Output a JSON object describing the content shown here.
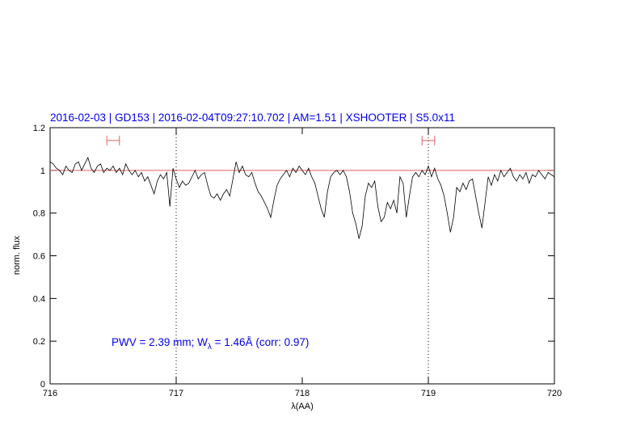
{
  "chart_data": {
    "type": "line",
    "title": "2016-02-03 | GD153 | 2016-02-04T09:27:10.702 | AM=1.51 | XSHOOTER | S5.0x11",
    "x_label": "λ(AA)",
    "y_label": "norm. flux",
    "annotation": [
      "PWV = 2.39 mm; W",
      "λ",
      " = 1.46Å (corr: 0.97)"
    ],
    "xlim": [
      716,
      720
    ],
    "xticks": [
      716,
      717,
      718,
      719,
      720
    ],
    "ylim": [
      0,
      1.2
    ],
    "yticks": [
      0,
      0.2,
      0.4,
      0.6,
      0.8,
      1,
      1.2
    ],
    "reference_line": {
      "y": 1,
      "color": "#e06060"
    },
    "dotted_lines": [
      717,
      719
    ],
    "range_markers": {
      "color": "#e06060",
      "y": 1.14,
      "ranges": [
        [
          716.45,
          716.55
        ],
        [
          718.95,
          719.05
        ]
      ]
    },
    "x": [
      716.0,
      716.025,
      716.05,
      716.075,
      716.1,
      716.125,
      716.15,
      716.175,
      716.2,
      716.225,
      716.25,
      716.275,
      716.3,
      716.325,
      716.35,
      716.375,
      716.4,
      716.425,
      716.45,
      716.475,
      716.5,
      716.525,
      716.55,
      716.575,
      716.6,
      716.625,
      716.65,
      716.675,
      716.7,
      716.725,
      716.75,
      716.775,
      716.8,
      716.825,
      716.85,
      716.875,
      716.9,
      716.925,
      716.95,
      716.975,
      717.0,
      717.025,
      717.05,
      717.075,
      717.1,
      717.125,
      717.15,
      717.175,
      717.2,
      717.225,
      717.25,
      717.275,
      717.3,
      717.325,
      717.35,
      717.375,
      717.4,
      717.425,
      717.45,
      717.475,
      717.5,
      717.525,
      717.55,
      717.575,
      717.6,
      717.625,
      717.65,
      717.675,
      717.7,
      717.725,
      717.75,
      717.775,
      717.8,
      717.825,
      717.85,
      717.875,
      717.9,
      717.925,
      717.95,
      717.975,
      718.0,
      718.025,
      718.05,
      718.075,
      718.1,
      718.125,
      718.15,
      718.175,
      718.2,
      718.225,
      718.25,
      718.275,
      718.3,
      718.325,
      718.35,
      718.375,
      718.4,
      718.425,
      718.45,
      718.475,
      718.5,
      718.525,
      718.55,
      718.575,
      718.6,
      718.625,
      718.65,
      718.675,
      718.7,
      718.725,
      718.75,
      718.775,
      718.8,
      718.825,
      718.85,
      718.875,
      718.9,
      718.925,
      718.95,
      718.975,
      719.0,
      719.025,
      719.05,
      719.075,
      719.1,
      719.125,
      719.15,
      719.175,
      719.2,
      719.225,
      719.25,
      719.275,
      719.3,
      719.325,
      719.35,
      719.375,
      719.4,
      719.425,
      719.45,
      719.475,
      719.5,
      719.525,
      719.55,
      719.575,
      719.6,
      719.625,
      719.65,
      719.675,
      719.7,
      719.725,
      719.75,
      719.775,
      719.8,
      719.825,
      719.85,
      719.875,
      719.9,
      719.925,
      719.95,
      719.975,
      720.0
    ],
    "series": [
      {
        "color": "#000000",
        "values": [
          1.04,
          1.03,
          1.01,
          1.0,
          0.98,
          1.02,
          1.0,
          0.99,
          1.03,
          1.04,
          1.0,
          1.03,
          1.06,
          1.01,
          0.99,
          1.02,
          1.03,
          0.99,
          1.01,
          1.0,
          1.02,
          0.99,
          1.01,
          0.98,
          1.03,
          1.0,
          0.98,
          1.0,
          0.97,
          0.99,
          0.95,
          0.97,
          0.93,
          0.89,
          0.95,
          0.98,
          0.96,
          0.99,
          0.83,
          1.01,
          0.96,
          0.92,
          0.95,
          0.93,
          0.94,
          0.97,
          1.0,
          0.96,
          0.98,
          0.99,
          0.93,
          0.88,
          0.87,
          0.89,
          0.86,
          0.89,
          0.91,
          0.88,
          0.96,
          1.04,
          0.99,
          1.02,
          0.98,
          0.97,
          0.99,
          0.94,
          0.9,
          0.88,
          0.85,
          0.82,
          0.78,
          0.86,
          0.93,
          0.96,
          0.98,
          1.0,
          0.97,
          1.01,
          0.99,
          1.02,
          1.0,
          0.98,
          1.01,
          0.97,
          0.94,
          0.88,
          0.82,
          0.78,
          0.9,
          0.97,
          0.99,
          1.0,
          0.98,
          1.0,
          0.97,
          0.9,
          0.8,
          0.75,
          0.68,
          0.74,
          0.88,
          0.94,
          0.92,
          0.95,
          0.83,
          0.76,
          0.78,
          0.85,
          0.82,
          0.86,
          0.8,
          0.97,
          0.94,
          0.78,
          0.88,
          0.97,
          0.99,
          0.97,
          1.0,
          0.98,
          1.02,
          0.97,
          1.01,
          0.96,
          0.93,
          0.88,
          0.8,
          0.71,
          0.78,
          0.92,
          0.9,
          0.94,
          0.91,
          0.95,
          0.96,
          0.88,
          0.8,
          0.73,
          0.85,
          0.97,
          0.93,
          0.98,
          0.95,
          1.0,
          0.97,
          0.99,
          1.01,
          0.97,
          0.95,
          0.98,
          0.96,
          0.99,
          0.94,
          0.98,
          0.97,
          1.0,
          0.98,
          0.96,
          0.99,
          0.98,
          0.97
        ]
      }
    ],
    "title_color": "#0000ee"
  }
}
